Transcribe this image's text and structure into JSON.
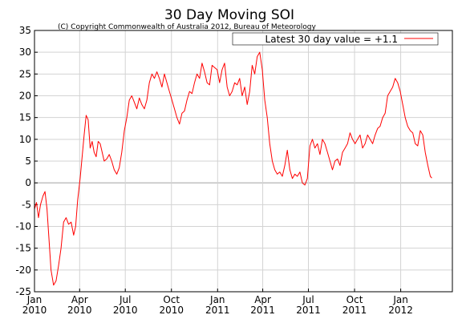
{
  "chart_data": {
    "type": "line",
    "title": "30 Day Moving SOI",
    "subtitle": "(C) Copyright Commonwealth of Australia 2012, Bureau of Meteorology",
    "xlabel": "",
    "ylabel": "",
    "ylim": [
      -25,
      35
    ],
    "yticks": [
      35,
      30,
      25,
      20,
      15,
      10,
      5,
      0,
      -5,
      -10,
      -15,
      -20,
      -25
    ],
    "xticks": [
      {
        "month": "Jan",
        "year": "2010",
        "date": "2010-01-01"
      },
      {
        "month": "Apr",
        "year": "2010",
        "date": "2010-04-01"
      },
      {
        "month": "Jul",
        "year": "2010",
        "date": "2010-07-01"
      },
      {
        "month": "Oct",
        "year": "2010",
        "date": "2010-10-01"
      },
      {
        "month": "Jan",
        "year": "2011",
        "date": "2011-01-01"
      },
      {
        "month": "Apr",
        "year": "2011",
        "date": "2011-04-01"
      },
      {
        "month": "Jul",
        "year": "2011",
        "date": "2011-07-01"
      },
      {
        "month": "Oct",
        "year": "2011",
        "date": "2011-10-01"
      },
      {
        "month": "Jan",
        "year": "2012",
        "date": "2012-01-01"
      }
    ],
    "grid": true,
    "zero_line": true,
    "legend_position": "top-right",
    "colors": {
      "series": "#ff0000",
      "grid": "#d3d3d3",
      "zero": "#a0a0a0",
      "axis": "#000000"
    },
    "series": [
      {
        "name": "Latest 30 day value = +1.1",
        "points": [
          [
            "2010-01-01",
            -6
          ],
          [
            "2010-01-05",
            -4.5
          ],
          [
            "2010-01-09",
            -8
          ],
          [
            "2010-01-13",
            -5
          ],
          [
            "2010-01-18",
            -3
          ],
          [
            "2010-01-22",
            -2
          ],
          [
            "2010-01-26",
            -6
          ],
          [
            "2010-01-30",
            -13
          ],
          [
            "2010-02-03",
            -20
          ],
          [
            "2010-02-08",
            -23.5
          ],
          [
            "2010-02-13",
            -22.5
          ],
          [
            "2010-02-18",
            -19
          ],
          [
            "2010-02-23",
            -15
          ],
          [
            "2010-02-28",
            -9
          ],
          [
            "2010-03-05",
            -8
          ],
          [
            "2010-03-10",
            -9.5
          ],
          [
            "2010-03-15",
            -9
          ],
          [
            "2010-03-20",
            -12
          ],
          [
            "2010-03-24",
            -10
          ],
          [
            "2010-03-28",
            -4
          ],
          [
            "2010-04-02",
            1
          ],
          [
            "2010-04-06",
            6
          ],
          [
            "2010-04-10",
            11
          ],
          [
            "2010-04-14",
            15.5
          ],
          [
            "2010-04-18",
            14.5
          ],
          [
            "2010-04-22",
            8
          ],
          [
            "2010-04-26",
            9.5
          ],
          [
            "2010-04-30",
            7
          ],
          [
            "2010-05-04",
            6
          ],
          [
            "2010-05-08",
            9.5
          ],
          [
            "2010-05-12",
            9
          ],
          [
            "2010-05-16",
            7
          ],
          [
            "2010-05-20",
            5
          ],
          [
            "2010-05-25",
            5.5
          ],
          [
            "2010-05-30",
            6.5
          ],
          [
            "2010-06-04",
            5
          ],
          [
            "2010-06-09",
            3
          ],
          [
            "2010-06-14",
            2
          ],
          [
            "2010-06-19",
            3.5
          ],
          [
            "2010-06-24",
            7
          ],
          [
            "2010-06-29",
            12
          ],
          [
            "2010-07-04",
            15
          ],
          [
            "2010-07-09",
            19
          ],
          [
            "2010-07-14",
            20
          ],
          [
            "2010-07-19",
            18.5
          ],
          [
            "2010-07-24",
            17
          ],
          [
            "2010-07-29",
            19.5
          ],
          [
            "2010-08-03",
            18
          ],
          [
            "2010-08-08",
            17
          ],
          [
            "2010-08-13",
            19
          ],
          [
            "2010-08-18",
            23
          ],
          [
            "2010-08-23",
            25
          ],
          [
            "2010-08-28",
            24
          ],
          [
            "2010-09-02",
            25.5
          ],
          [
            "2010-09-07",
            24
          ],
          [
            "2010-09-12",
            22
          ],
          [
            "2010-09-17",
            25
          ],
          [
            "2010-09-22",
            23
          ],
          [
            "2010-09-27",
            21
          ],
          [
            "2010-10-02",
            19
          ],
          [
            "2010-10-07",
            17
          ],
          [
            "2010-10-12",
            15
          ],
          [
            "2010-10-17",
            13.5
          ],
          [
            "2010-10-22",
            16
          ],
          [
            "2010-10-27",
            16.5
          ],
          [
            "2010-11-01",
            19
          ],
          [
            "2010-11-06",
            21
          ],
          [
            "2010-11-11",
            20.5
          ],
          [
            "2010-11-16",
            23
          ],
          [
            "2010-11-21",
            25
          ],
          [
            "2010-11-26",
            24
          ],
          [
            "2010-12-01",
            27.5
          ],
          [
            "2010-12-06",
            25.5
          ],
          [
            "2010-12-11",
            23
          ],
          [
            "2010-12-16",
            22.5
          ],
          [
            "2010-12-21",
            27
          ],
          [
            "2010-12-26",
            26.5
          ],
          [
            "2010-12-31",
            26
          ],
          [
            "2011-01-05",
            23
          ],
          [
            "2011-01-10",
            26
          ],
          [
            "2011-01-15",
            27.5
          ],
          [
            "2011-01-20",
            22
          ],
          [
            "2011-01-25",
            20
          ],
          [
            "2011-01-30",
            21
          ],
          [
            "2011-02-04",
            23
          ],
          [
            "2011-02-09",
            22.5
          ],
          [
            "2011-02-14",
            24
          ],
          [
            "2011-02-19",
            20
          ],
          [
            "2011-02-24",
            22
          ],
          [
            "2011-03-01",
            18
          ],
          [
            "2011-03-06",
            21
          ],
          [
            "2011-03-11",
            27
          ],
          [
            "2011-03-16",
            25
          ],
          [
            "2011-03-21",
            29
          ],
          [
            "2011-03-26",
            30
          ],
          [
            "2011-03-31",
            26
          ],
          [
            "2011-04-05",
            19
          ],
          [
            "2011-04-10",
            15
          ],
          [
            "2011-04-15",
            9
          ],
          [
            "2011-04-20",
            5
          ],
          [
            "2011-04-25",
            3
          ],
          [
            "2011-04-30",
            2
          ],
          [
            "2011-05-05",
            2.5
          ],
          [
            "2011-05-10",
            1.5
          ],
          [
            "2011-05-15",
            4
          ],
          [
            "2011-05-20",
            7.5
          ],
          [
            "2011-05-25",
            3
          ],
          [
            "2011-05-30",
            1
          ],
          [
            "2011-06-04",
            2
          ],
          [
            "2011-06-09",
            1.5
          ],
          [
            "2011-06-14",
            2.5
          ],
          [
            "2011-06-19",
            0
          ],
          [
            "2011-06-24",
            -0.5
          ],
          [
            "2011-06-29",
            1
          ],
          [
            "2011-07-04",
            8.5
          ],
          [
            "2011-07-09",
            10
          ],
          [
            "2011-07-14",
            8
          ],
          [
            "2011-07-19",
            9
          ],
          [
            "2011-07-24",
            6.5
          ],
          [
            "2011-07-29",
            10
          ],
          [
            "2011-08-03",
            9
          ],
          [
            "2011-08-08",
            7
          ],
          [
            "2011-08-13",
            5
          ],
          [
            "2011-08-18",
            3
          ],
          [
            "2011-08-23",
            5
          ],
          [
            "2011-08-28",
            5.5
          ],
          [
            "2011-09-02",
            4
          ],
          [
            "2011-09-07",
            7
          ],
          [
            "2011-09-12",
            8
          ],
          [
            "2011-09-17",
            9
          ],
          [
            "2011-09-22",
            11.5
          ],
          [
            "2011-09-27",
            10
          ],
          [
            "2011-10-02",
            9
          ],
          [
            "2011-10-07",
            10
          ],
          [
            "2011-10-12",
            11
          ],
          [
            "2011-10-17",
            8
          ],
          [
            "2011-10-22",
            9
          ],
          [
            "2011-10-27",
            11
          ],
          [
            "2011-11-01",
            10
          ],
          [
            "2011-11-06",
            9
          ],
          [
            "2011-11-11",
            11
          ],
          [
            "2011-11-16",
            12.5
          ],
          [
            "2011-11-21",
            13
          ],
          [
            "2011-11-26",
            15
          ],
          [
            "2011-12-01",
            16
          ],
          [
            "2011-12-06",
            20
          ],
          [
            "2011-12-11",
            21
          ],
          [
            "2011-12-16",
            22
          ],
          [
            "2011-12-21",
            24
          ],
          [
            "2011-12-26",
            23
          ],
          [
            "2011-12-31",
            21
          ],
          [
            "2012-01-05",
            18
          ],
          [
            "2012-01-10",
            15
          ],
          [
            "2012-01-15",
            13
          ],
          [
            "2012-01-20",
            12
          ],
          [
            "2012-01-25",
            11.5
          ],
          [
            "2012-01-30",
            9
          ],
          [
            "2012-02-04",
            8.5
          ],
          [
            "2012-02-09",
            12
          ],
          [
            "2012-02-14",
            11
          ],
          [
            "2012-02-19",
            7
          ],
          [
            "2012-02-24",
            4
          ],
          [
            "2012-02-29",
            1.5
          ],
          [
            "2012-03-03",
            1.1
          ]
        ]
      }
    ]
  }
}
